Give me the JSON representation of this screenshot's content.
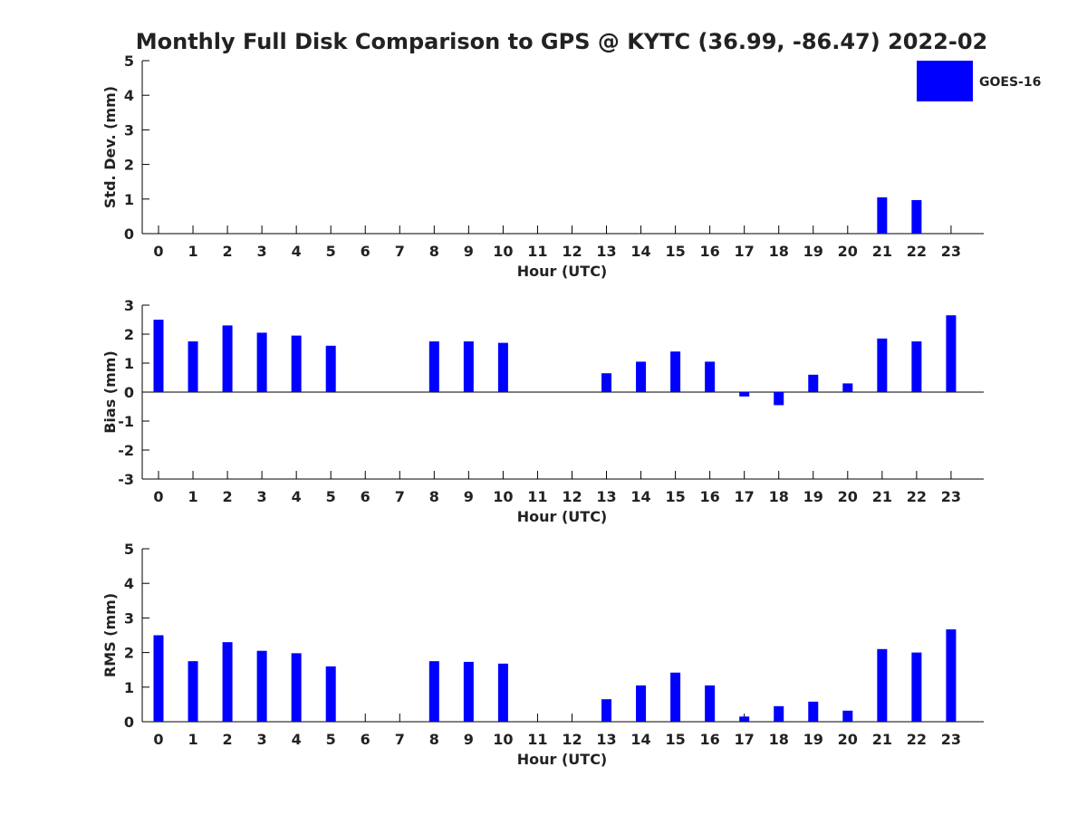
{
  "figure_title": "Monthly Full Disk Comparison to GPS @ KYTC (36.99, -86.47) 2022-02",
  "colors": {
    "bar": "#0000ff",
    "axis": "#000000",
    "text": "#222222"
  },
  "legend": {
    "label": "GOES-16",
    "placement": "top-right"
  },
  "chart_data": [
    {
      "type": "bar",
      "panel": "std-dev",
      "xlabel": "Hour (UTC)",
      "ylabel": "Std. Dev. (mm)",
      "ylim": [
        0,
        5
      ],
      "yticks": [
        0,
        1,
        2,
        3,
        4,
        5
      ],
      "categories": [
        "0",
        "1",
        "2",
        "3",
        "4",
        "5",
        "6",
        "7",
        "8",
        "9",
        "10",
        "11",
        "12",
        "13",
        "14",
        "15",
        "16",
        "17",
        "18",
        "19",
        "20",
        "21",
        "22",
        "23"
      ],
      "series": [
        {
          "name": "GOES-16",
          "values": [
            null,
            null,
            null,
            null,
            null,
            null,
            null,
            null,
            null,
            null,
            null,
            null,
            null,
            null,
            null,
            null,
            null,
            null,
            null,
            null,
            null,
            1.05,
            0.97,
            null
          ]
        }
      ]
    },
    {
      "type": "bar",
      "panel": "bias",
      "xlabel": "Hour (UTC)",
      "ylabel": "Bias (mm)",
      "ylim": [
        -3,
        3
      ],
      "yticks": [
        -3,
        -2,
        -1,
        0,
        1,
        2,
        3
      ],
      "categories": [
        "0",
        "1",
        "2",
        "3",
        "4",
        "5",
        "6",
        "7",
        "8",
        "9",
        "10",
        "11",
        "12",
        "13",
        "14",
        "15",
        "16",
        "17",
        "18",
        "19",
        "20",
        "21",
        "22",
        "23"
      ],
      "series": [
        {
          "name": "GOES-16",
          "values": [
            2.5,
            1.75,
            2.3,
            2.05,
            1.95,
            1.6,
            null,
            null,
            1.75,
            1.75,
            1.7,
            null,
            null,
            0.65,
            1.05,
            1.4,
            1.05,
            -0.15,
            -0.45,
            0.6,
            0.3,
            1.85,
            1.75,
            2.65
          ]
        }
      ]
    },
    {
      "type": "bar",
      "panel": "rms",
      "xlabel": "Hour (UTC)",
      "ylabel": "RMS (mm)",
      "ylim": [
        0,
        5
      ],
      "yticks": [
        0,
        1,
        2,
        3,
        4,
        5
      ],
      "categories": [
        "0",
        "1",
        "2",
        "3",
        "4",
        "5",
        "6",
        "7",
        "8",
        "9",
        "10",
        "11",
        "12",
        "13",
        "14",
        "15",
        "16",
        "17",
        "18",
        "19",
        "20",
        "21",
        "22",
        "23"
      ],
      "series": [
        {
          "name": "GOES-16",
          "values": [
            2.5,
            1.75,
            2.3,
            2.05,
            1.98,
            1.6,
            null,
            null,
            1.75,
            1.73,
            1.68,
            null,
            null,
            0.65,
            1.05,
            1.42,
            1.05,
            0.15,
            0.45,
            0.58,
            0.32,
            2.1,
            2.0,
            2.67
          ]
        }
      ]
    }
  ]
}
